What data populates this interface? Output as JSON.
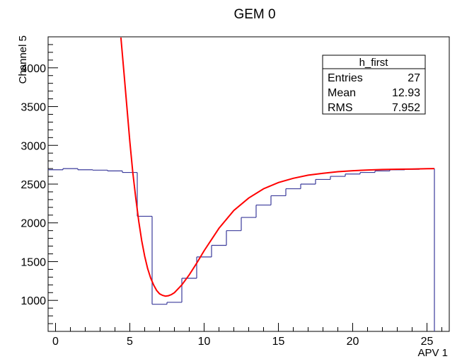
{
  "chart_data": {
    "type": "histogram",
    "title": "GEM 0",
    "xlabel": "APV 1",
    "ylabel": "Channel 5",
    "xlim": [
      -0.5,
      26.5
    ],
    "ylim": [
      600,
      4400
    ],
    "xticks": [
      0,
      5,
      10,
      15,
      20,
      25
    ],
    "yticks": [
      1000,
      1500,
      2000,
      2500,
      3000,
      3500,
      4000
    ],
    "bins": {
      "edges": [
        -0.5,
        0.5,
        1.5,
        2.5,
        3.5,
        4.5,
        5.5,
        6.5,
        7.5,
        8.5,
        9.5,
        10.5,
        11.5,
        12.5,
        13.5,
        14.5,
        15.5,
        16.5,
        17.5,
        18.5,
        19.5,
        20.5,
        21.5,
        22.5,
        23.5,
        24.5,
        25.5
      ],
      "values": [
        2685,
        2700,
        2685,
        2680,
        2670,
        2650,
        2085,
        950,
        975,
        1285,
        1560,
        1710,
        1900,
        2070,
        2230,
        2350,
        2440,
        2500,
        2560,
        2600,
        2630,
        2650,
        2670,
        2685,
        2690,
        2700
      ]
    },
    "fit": {
      "name": "fit",
      "color": "#ff0000",
      "x": [
        4.4,
        4.6,
        4.8,
        5.0,
        5.2,
        5.4,
        5.6,
        5.8,
        6.0,
        6.2,
        6.4,
        6.6,
        6.8,
        7.0,
        7.2,
        7.4,
        7.6,
        7.8,
        8.0,
        8.5,
        9.0,
        9.5,
        10.0,
        11.0,
        12.0,
        13.0,
        14.0,
        15.0,
        16.0,
        17.0,
        18.0,
        19.0,
        20.0,
        21.0,
        22.0,
        23.0,
        24.0,
        25.0,
        25.5
      ],
      "y": [
        4390,
        3950,
        3500,
        3050,
        2650,
        2320,
        2020,
        1770,
        1570,
        1410,
        1290,
        1200,
        1130,
        1085,
        1065,
        1055,
        1060,
        1075,
        1100,
        1200,
        1330,
        1480,
        1640,
        1930,
        2160,
        2320,
        2440,
        2520,
        2575,
        2615,
        2640,
        2660,
        2673,
        2682,
        2688,
        2692,
        2695,
        2698,
        2700
      ]
    },
    "drop_line": {
      "x": 25.5,
      "y_from": 2700
    },
    "stats_box": {
      "title": "h_first",
      "rows": [
        {
          "label": "Entries",
          "value": "27"
        },
        {
          "label": "Mean",
          "value": "12.93"
        },
        {
          "label": "RMS",
          "value": "7.952"
        }
      ]
    },
    "colors": {
      "histogram": "#3b3b9b",
      "fit": "#ff0000",
      "axis": "#000000"
    },
    "grid": false
  }
}
